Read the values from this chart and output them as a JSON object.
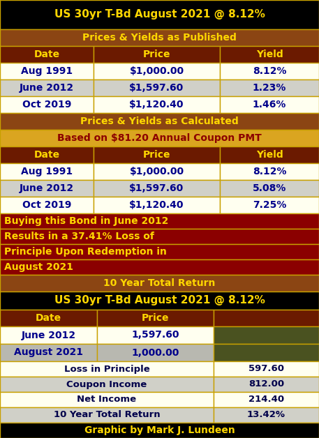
{
  "title": "US 30yr T-Bd August 2021 @ 8.12%",
  "title_bg": "#000000",
  "title_fg": "#FFD700",
  "section1_header": "Prices & Yields as Published",
  "section1_bg": "#8B4513",
  "section1_fg": "#FFD700",
  "col_headers": [
    "Date",
    "Price",
    "Yield"
  ],
  "col_hdr_bg": "#6B1A00",
  "col_hdr_fg": "#FFD700",
  "rows1": [
    [
      "Aug 1991",
      "$1,000.00",
      "8.12%"
    ],
    [
      "June 2012",
      "$1,597.60",
      "1.23%"
    ],
    [
      "Oct 2019",
      "$1,120.40",
      "1.46%"
    ]
  ],
  "row_bg_light": "#FFFFF0",
  "row_bg_mid": "#D0D0C8",
  "row_fg": "#00008B",
  "section2_header": "Prices & Yields as Calculated",
  "section2_bg": "#8B4513",
  "section2_fg": "#FFD700",
  "subheader": "Based on $81.20 Annual Coupon PMT",
  "subheader_bg": "#DAA520",
  "subheader_fg": "#8B0000",
  "rows2": [
    [
      "Aug 1991",
      "$1,000.00",
      "8.12%"
    ],
    [
      "June 2012",
      "$1,597.60",
      "5.08%"
    ],
    [
      "Oct 2019",
      "$1,120.40",
      "7.25%"
    ]
  ],
  "note_lines": [
    "Buying this Bond in June 2012",
    "Results in a 37.41% Loss of",
    "Principle Upon Redemption in",
    "August 2021"
  ],
  "note_bg": "#8B0000",
  "note_fg": "#FFD700",
  "section3_header": "10 Year Total Return",
  "section3_bg": "#8B4513",
  "section3_fg": "#FFD700",
  "sec3_title": "US 30yr T-Bd August 2021 @ 8.12%",
  "sec3_title_bg": "#000000",
  "sec3_title_fg": "#FFD700",
  "col_headers3": [
    "Date",
    "Price",
    ""
  ],
  "col_hdr3_bg": "#6B1A00",
  "col_hdr3_fg": "#FFD700",
  "rows3": [
    [
      "June 2012",
      "1,597.60"
    ],
    [
      "August 2021",
      "1,000.00"
    ]
  ],
  "row3_bg_odd": "#FFFFF0",
  "row3_bg_even": "#B8B8B0",
  "row3_fg": "#00008B",
  "row3_dark_bg": "#4A5220",
  "summary_rows": [
    [
      "Loss in Principle",
      "597.60"
    ],
    [
      "Coupon Income",
      "812.00"
    ],
    [
      "Net Income",
      "214.40"
    ],
    [
      "10 Year Total Return",
      "13.42%"
    ]
  ],
  "sum_bg_light": "#FFFFF0",
  "sum_bg_mid": "#D0D0C8",
  "sum_fg": "#00004B",
  "footer": "Graphic by Mark J. Lundeen",
  "footer_bg": "#000000",
  "footer_fg": "#FFD700",
  "border_color": "#C8A000"
}
